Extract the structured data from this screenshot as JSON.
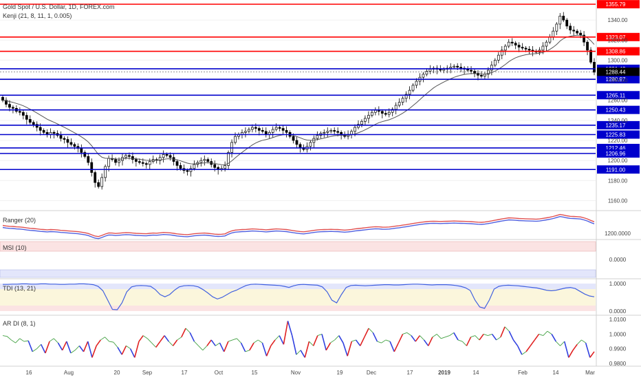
{
  "header": {
    "symbol_title": "Gold Spot / U.S. Dollar, 1D, FOREX.com",
    "indicator_title": "Kenji (21, 8, 11, 1, 0.005)"
  },
  "colors": {
    "up_candle": "#ffffff",
    "down_candle": "#000000",
    "red_level": "#ff0000",
    "blue_level": "#0000cc",
    "last_price_badge": "#000000",
    "buy_text": "#5b5bd6",
    "sell_text": "#e0609a",
    "ranger_red": "#e05050",
    "ranger_blue": "#5060e0",
    "tdi_line": "#4060e0",
    "ar_red": "#e02020",
    "ar_blue": "#3040e0",
    "ar_green": "#40a040"
  },
  "chart_data": [
    {
      "type": "candlestick",
      "panel": "price",
      "title": "Gold Spot / U.S. Dollar, 1D, FOREX.com",
      "ylim": [
        1150,
        1360
      ],
      "y_ticks": [
        "1340.00",
        "1320.00",
        "1300.00",
        "1280.00",
        "1260.00",
        "1240.00",
        "1220.00",
        "1200.00",
        "1180.00",
        "1160.00"
      ],
      "x_ticks": [
        "16",
        "Aug",
        "20",
        "Sep",
        "17",
        "Oct",
        "15",
        "Nov",
        "19",
        "Dec",
        "17",
        "2019",
        "14",
        "Feb",
        "14",
        "Mar"
      ],
      "price_levels": [
        {
          "value": 1355.79,
          "label": "1355.79",
          "color": "red"
        },
        {
          "value": 1323.07,
          "label": "1323.07",
          "color": "red"
        },
        {
          "value": 1308.86,
          "label": "1308.86",
          "color": "red"
        },
        {
          "value": 1291.43,
          "label": "1291.43",
          "color": "blue"
        },
        {
          "value": 1280.97,
          "label": "1280.97",
          "color": "blue"
        },
        {
          "value": 1265.11,
          "label": "1265.11",
          "color": "blue"
        },
        {
          "value": 1250.43,
          "label": "1250.43",
          "color": "blue"
        },
        {
          "value": 1235.17,
          "label": "1235.17",
          "color": "blue"
        },
        {
          "value": 1225.83,
          "label": "1225.83",
          "color": "blue"
        },
        {
          "value": 1212.46,
          "label": "1212.46",
          "color": "blue"
        },
        {
          "value": 1206.96,
          "label": "1206.96",
          "color": "blue"
        },
        {
          "value": 1191.0,
          "label": "1191.00",
          "color": "blue"
        }
      ],
      "last_price": {
        "value": 1288.44,
        "label": "1288.44"
      },
      "closes": [
        1260,
        1256,
        1253,
        1252,
        1249,
        1248,
        1245,
        1241,
        1238,
        1236,
        1233,
        1230,
        1228,
        1226,
        1228,
        1227,
        1225,
        1222,
        1221,
        1218,
        1216,
        1214,
        1212,
        1208,
        1204,
        1198,
        1188,
        1178,
        1174,
        1183,
        1194,
        1202,
        1201,
        1198,
        1200,
        1203,
        1205,
        1204,
        1201,
        1199,
        1198,
        1197,
        1196,
        1199,
        1201,
        1200,
        1203,
        1206,
        1205,
        1203,
        1199,
        1195,
        1192,
        1190,
        1189,
        1192,
        1196,
        1198,
        1200,
        1201,
        1199,
        1196,
        1193,
        1191,
        1192,
        1195,
        1208,
        1218,
        1224,
        1226,
        1228,
        1229,
        1231,
        1233,
        1232,
        1230,
        1229,
        1226,
        1228,
        1231,
        1233,
        1232,
        1230,
        1228,
        1224,
        1220,
        1216,
        1213,
        1211,
        1214,
        1218,
        1222,
        1225,
        1227,
        1228,
        1229,
        1230,
        1229,
        1228,
        1226,
        1224,
        1226,
        1229,
        1233,
        1236,
        1239,
        1242,
        1245,
        1248,
        1250,
        1249,
        1247,
        1246,
        1248,
        1251,
        1255,
        1258,
        1262,
        1266,
        1270,
        1275,
        1279,
        1283,
        1286,
        1289,
        1291,
        1292,
        1291,
        1290,
        1291,
        1292,
        1293,
        1294,
        1293,
        1292,
        1291,
        1290,
        1289,
        1287,
        1285,
        1284,
        1286,
        1290,
        1295,
        1300,
        1305,
        1310,
        1314,
        1318,
        1317,
        1315,
        1313,
        1312,
        1311,
        1310,
        1309,
        1308,
        1310,
        1314,
        1318,
        1323,
        1329,
        1336,
        1344,
        1340,
        1334,
        1330,
        1329,
        1327,
        1325,
        1318,
        1310,
        1298,
        1288
      ]
    },
    {
      "type": "line",
      "panel": "Ranger",
      "title": "Ranger (20)",
      "y_ticks": [
        "1200.0000"
      ],
      "series": [
        {
          "values": []
        },
        {
          "values": []
        }
      ]
    },
    {
      "type": "line",
      "panel": "MSI",
      "title": "MSI (10)",
      "y_ticks": [
        "0.0000"
      ],
      "series": []
    },
    {
      "type": "line",
      "panel": "TDI",
      "title": "TDI (13, 21)",
      "y_ticks": [
        "1.0000",
        "0.0000"
      ],
      "ylim": [
        -0.1,
        1.1
      ],
      "series": [
        {
          "values": [
            0.97,
            0.97,
            0.98,
            0.98,
            0.99,
            0.99,
            0.98,
            0.98,
            0.99,
            0.99,
            0.98,
            0.98,
            0.97,
            0.97,
            0.98,
            0.98,
            0.99,
            0.99,
            0.98,
            0.96,
            0.9,
            0.74,
            0.4,
            0.06,
            0.05,
            0.3,
            0.7,
            0.88,
            0.92,
            0.93,
            0.92,
            0.9,
            0.78,
            0.6,
            0.52,
            0.6,
            0.76,
            0.88,
            0.92,
            0.93,
            0.92,
            0.88,
            0.78,
            0.66,
            0.52,
            0.44,
            0.5,
            0.6,
            0.7,
            0.76,
            0.85,
            0.93,
            0.97,
            0.98,
            0.97,
            0.96,
            0.95,
            0.94,
            0.93,
            0.9,
            0.86,
            0.92,
            0.96,
            0.97,
            0.96,
            0.95,
            0.94,
            0.88,
            0.7,
            0.4,
            0.3,
            0.6,
            0.86,
            0.93,
            0.94,
            0.93,
            0.92,
            0.93,
            0.94,
            0.95,
            0.96,
            0.96,
            0.95,
            0.95,
            0.96,
            0.97,
            0.98,
            0.98,
            0.97,
            0.96,
            0.95,
            0.96,
            0.96,
            0.96,
            0.95,
            0.93,
            0.9,
            0.85,
            0.75,
            0.4,
            0.15,
            0.1,
            0.4,
            0.8,
            0.9,
            0.93,
            0.94,
            0.93,
            0.92,
            0.9,
            0.88,
            0.86,
            0.84,
            0.8,
            0.76,
            0.74,
            0.76,
            0.8,
            0.84,
            0.86,
            0.82,
            0.72,
            0.62,
            0.55,
            0.52
          ]
        }
      ]
    },
    {
      "type": "line",
      "panel": "AR DI",
      "title": "AR DI (8, 1)",
      "y_ticks": [
        "1.0100",
        "1.0000",
        "0.9900",
        "0.9800"
      ],
      "ylim": [
        0.979,
        1.012
      ],
      "series": [
        {
          "values": [
            0.999,
            0.9985,
            0.996,
            0.994,
            0.997,
            0.995,
            0.9955,
            0.988,
            0.99,
            0.993,
            0.987,
            0.995,
            0.997,
            0.994,
            0.989,
            0.995,
            0.987,
            0.989,
            0.992,
            0.988,
            0.995,
            0.984,
            0.992,
            0.996,
            0.998,
            0.995,
            0.9945,
            0.991,
            0.986,
            0.992,
            0.99,
            0.984,
            0.995,
            0.999,
            0.997,
            0.994,
            0.991,
            0.995,
            0.999,
            0.995,
            0.992,
            0.996,
            0.998,
            1.004,
            1.001,
            0.995,
            0.992,
            0.989,
            0.992,
            0.996,
            0.992,
            0.994,
            0.988,
            0.995,
            0.996,
            0.997,
            0.994,
            0.988,
            0.989,
            0.994,
            0.996,
            0.994,
            0.985,
            0.992,
            0.996,
            0.999,
            0.993,
            1.009,
            0.999,
            0.986,
            0.989,
            0.984,
            0.995,
            0.992,
            0.999,
            1.0,
            0.989,
            0.994,
            0.996,
            0.999,
            0.994,
            0.985,
            0.995,
            0.996,
            0.992,
            0.998,
            1.004,
            1.001,
            0.995,
            0.994,
            0.996,
            0.995,
            0.988,
            0.994,
            1.0,
            1.001,
            0.999,
            0.995,
            0.999,
            0.996,
            0.992,
            0.998,
            1.0,
            0.997,
            0.998,
            0.999,
            1.001,
            0.996,
            0.995,
            0.992,
            0.998,
            0.999,
            0.996,
            1.0,
            0.999,
            1.0,
            0.996,
            0.998,
            1.005,
            1.002,
            0.996,
            0.992,
            0.986,
            0.988,
            0.992,
            0.996,
            1.0,
            0.999,
            1.002,
            1.0,
            0.995,
            0.992,
            0.995,
            0.984,
            0.989,
            0.993,
            0.996,
            0.994,
            0.984,
            0.988
          ]
        }
      ]
    }
  ]
}
